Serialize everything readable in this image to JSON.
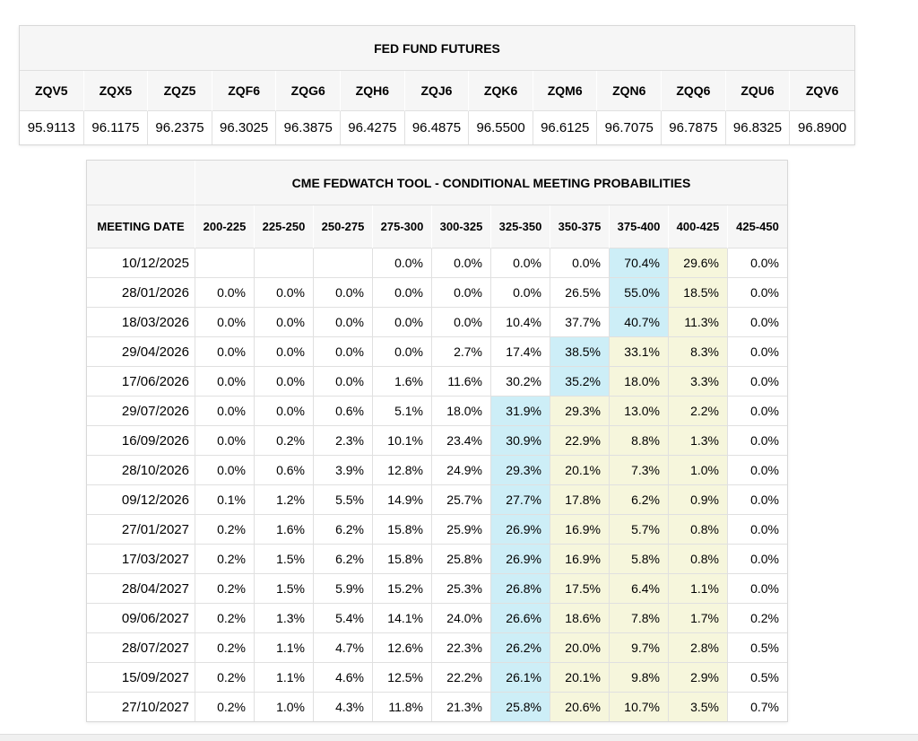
{
  "colors": {
    "highlight_blue": "#cdeef7",
    "highlight_yellow": "#f6f6dc",
    "header_background": "#f6f6f6",
    "cell_border": "#e0e0e0",
    "page_background": "#ffffff",
    "bottom_edge_bar": "#f0f0f0"
  },
  "chart_data": [
    {
      "type": "table",
      "title": "FED FUND FUTURES",
      "columns": [
        "ZQV5",
        "ZQX5",
        "ZQZ5",
        "ZQF6",
        "ZQG6",
        "ZQH6",
        "ZQJ6",
        "ZQK6",
        "ZQM6",
        "ZQN6",
        "ZQQ6",
        "ZQU6",
        "ZQV6"
      ],
      "values": [
        "95.9113",
        "96.1175",
        "96.2375",
        "96.3025",
        "96.3875",
        "96.4275",
        "96.4875",
        "96.5500",
        "96.6125",
        "96.7075",
        "96.7875",
        "96.8325",
        "96.8900"
      ]
    },
    {
      "type": "table",
      "title": "CME FEDWATCH TOOL - CONDITIONAL MEETING PROBABILITIES",
      "date_column_header": "MEETING DATE",
      "rate_bucket_headers": [
        "200-225",
        "225-250",
        "250-275",
        "275-300",
        "300-325",
        "325-350",
        "350-375",
        "375-400",
        "400-425",
        "425-450"
      ],
      "rows": [
        {
          "date": "10/12/2025",
          "values": [
            "",
            "",
            "",
            "0.0%",
            "0.0%",
            "0.0%",
            "0.0%",
            "70.4%",
            "29.6%",
            "0.0%"
          ],
          "highlights": [
            "",
            "",
            "",
            "",
            "",
            "",
            "",
            "blue",
            "yellow",
            ""
          ]
        },
        {
          "date": "28/01/2026",
          "values": [
            "0.0%",
            "0.0%",
            "0.0%",
            "0.0%",
            "0.0%",
            "0.0%",
            "26.5%",
            "55.0%",
            "18.5%",
            "0.0%"
          ],
          "highlights": [
            "",
            "",
            "",
            "",
            "",
            "",
            "",
            "blue",
            "yellow",
            ""
          ]
        },
        {
          "date": "18/03/2026",
          "values": [
            "0.0%",
            "0.0%",
            "0.0%",
            "0.0%",
            "0.0%",
            "10.4%",
            "37.7%",
            "40.7%",
            "11.3%",
            "0.0%"
          ],
          "highlights": [
            "",
            "",
            "",
            "",
            "",
            "",
            "",
            "blue",
            "yellow",
            ""
          ]
        },
        {
          "date": "29/04/2026",
          "values": [
            "0.0%",
            "0.0%",
            "0.0%",
            "0.0%",
            "2.7%",
            "17.4%",
            "38.5%",
            "33.1%",
            "8.3%",
            "0.0%"
          ],
          "highlights": [
            "",
            "",
            "",
            "",
            "",
            "",
            "blue",
            "yellow",
            "yellow",
            ""
          ]
        },
        {
          "date": "17/06/2026",
          "values": [
            "0.0%",
            "0.0%",
            "0.0%",
            "1.6%",
            "11.6%",
            "30.2%",
            "35.2%",
            "18.0%",
            "3.3%",
            "0.0%"
          ],
          "highlights": [
            "",
            "",
            "",
            "",
            "",
            "",
            "blue",
            "yellow",
            "yellow",
            ""
          ]
        },
        {
          "date": "29/07/2026",
          "values": [
            "0.0%",
            "0.0%",
            "0.6%",
            "5.1%",
            "18.0%",
            "31.9%",
            "29.3%",
            "13.0%",
            "2.2%",
            "0.0%"
          ],
          "highlights": [
            "",
            "",
            "",
            "",
            "",
            "blue",
            "yellow",
            "yellow",
            "yellow",
            ""
          ]
        },
        {
          "date": "16/09/2026",
          "values": [
            "0.0%",
            "0.2%",
            "2.3%",
            "10.1%",
            "23.4%",
            "30.9%",
            "22.9%",
            "8.8%",
            "1.3%",
            "0.0%"
          ],
          "highlights": [
            "",
            "",
            "",
            "",
            "",
            "blue",
            "yellow",
            "yellow",
            "yellow",
            ""
          ]
        },
        {
          "date": "28/10/2026",
          "values": [
            "0.0%",
            "0.6%",
            "3.9%",
            "12.8%",
            "24.9%",
            "29.3%",
            "20.1%",
            "7.3%",
            "1.0%",
            "0.0%"
          ],
          "highlights": [
            "",
            "",
            "",
            "",
            "",
            "blue",
            "yellow",
            "yellow",
            "yellow",
            ""
          ]
        },
        {
          "date": "09/12/2026",
          "values": [
            "0.1%",
            "1.2%",
            "5.5%",
            "14.9%",
            "25.7%",
            "27.7%",
            "17.8%",
            "6.2%",
            "0.9%",
            "0.0%"
          ],
          "highlights": [
            "",
            "",
            "",
            "",
            "",
            "blue",
            "yellow",
            "yellow",
            "yellow",
            ""
          ]
        },
        {
          "date": "27/01/2027",
          "values": [
            "0.2%",
            "1.6%",
            "6.2%",
            "15.8%",
            "25.9%",
            "26.9%",
            "16.9%",
            "5.7%",
            "0.8%",
            "0.0%"
          ],
          "highlights": [
            "",
            "",
            "",
            "",
            "",
            "blue",
            "yellow",
            "yellow",
            "yellow",
            ""
          ]
        },
        {
          "date": "17/03/2027",
          "values": [
            "0.2%",
            "1.5%",
            "6.2%",
            "15.8%",
            "25.8%",
            "26.9%",
            "16.9%",
            "5.8%",
            "0.8%",
            "0.0%"
          ],
          "highlights": [
            "",
            "",
            "",
            "",
            "",
            "blue",
            "yellow",
            "yellow",
            "yellow",
            ""
          ]
        },
        {
          "date": "28/04/2027",
          "values": [
            "0.2%",
            "1.5%",
            "5.9%",
            "15.2%",
            "25.3%",
            "26.8%",
            "17.5%",
            "6.4%",
            "1.1%",
            "0.0%"
          ],
          "highlights": [
            "",
            "",
            "",
            "",
            "",
            "blue",
            "yellow",
            "yellow",
            "yellow",
            ""
          ]
        },
        {
          "date": "09/06/2027",
          "values": [
            "0.2%",
            "1.3%",
            "5.4%",
            "14.1%",
            "24.0%",
            "26.6%",
            "18.6%",
            "7.8%",
            "1.7%",
            "0.2%"
          ],
          "highlights": [
            "",
            "",
            "",
            "",
            "",
            "blue",
            "yellow",
            "yellow",
            "yellow",
            ""
          ]
        },
        {
          "date": "28/07/2027",
          "values": [
            "0.2%",
            "1.1%",
            "4.7%",
            "12.6%",
            "22.3%",
            "26.2%",
            "20.0%",
            "9.7%",
            "2.8%",
            "0.5%"
          ],
          "highlights": [
            "",
            "",
            "",
            "",
            "",
            "blue",
            "yellow",
            "yellow",
            "yellow",
            ""
          ]
        },
        {
          "date": "15/09/2027",
          "values": [
            "0.2%",
            "1.1%",
            "4.6%",
            "12.5%",
            "22.2%",
            "26.1%",
            "20.1%",
            "9.8%",
            "2.9%",
            "0.5%"
          ],
          "highlights": [
            "",
            "",
            "",
            "",
            "",
            "blue",
            "yellow",
            "yellow",
            "yellow",
            ""
          ]
        },
        {
          "date": "27/10/2027",
          "values": [
            "0.2%",
            "1.0%",
            "4.3%",
            "11.8%",
            "21.3%",
            "25.8%",
            "20.6%",
            "10.7%",
            "3.5%",
            "0.7%"
          ],
          "highlights": [
            "",
            "",
            "",
            "",
            "",
            "blue",
            "yellow",
            "yellow",
            "yellow",
            ""
          ]
        }
      ]
    }
  ]
}
